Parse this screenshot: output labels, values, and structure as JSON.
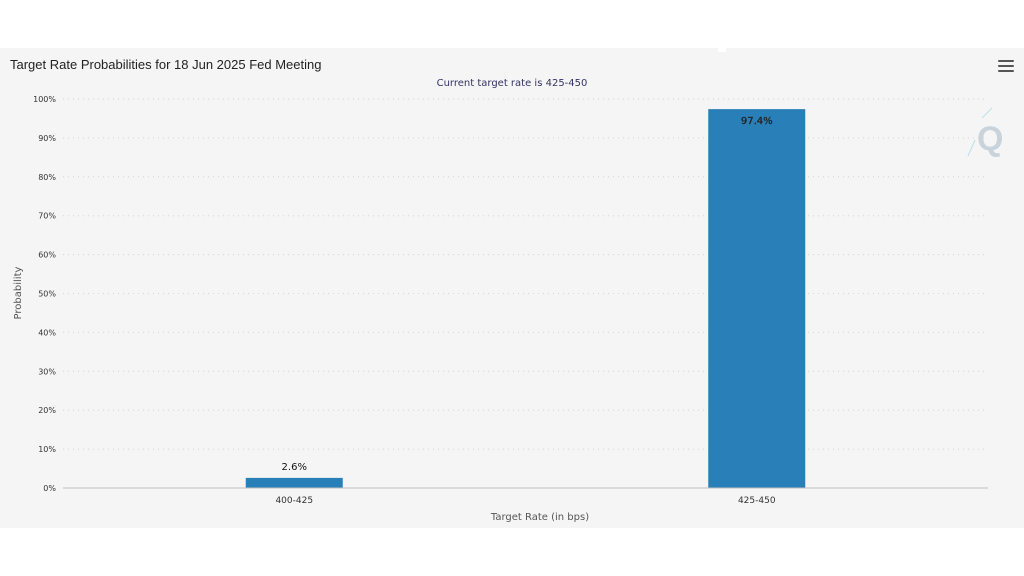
{
  "chart_data": {
    "type": "bar",
    "title": "Target Rate Probabilities for 18 Jun 2025 Fed Meeting",
    "subtitle": "Current target rate is 425-450",
    "xlabel": "Target Rate (in bps)",
    "ylabel": "Probability",
    "categories": [
      "400-425",
      "425-450"
    ],
    "values": [
      2.6,
      97.4
    ],
    "data_labels": [
      "2.6%",
      "97.4%"
    ],
    "ylim": [
      0,
      100
    ],
    "yticks": [
      0,
      10,
      20,
      30,
      40,
      50,
      60,
      70,
      80,
      90,
      100
    ],
    "ytick_labels": [
      "0%",
      "10%",
      "20%",
      "30%",
      "40%",
      "50%",
      "60%",
      "70%",
      "80%",
      "90%",
      "100%"
    ],
    "grid": "horizontal dotted",
    "bar_color": "#2980b9"
  },
  "toolbar": {
    "menu_icon": "hamburger-menu-icon"
  },
  "watermark": {
    "logo_icon": "q-logo-icon",
    "text": "Q"
  }
}
